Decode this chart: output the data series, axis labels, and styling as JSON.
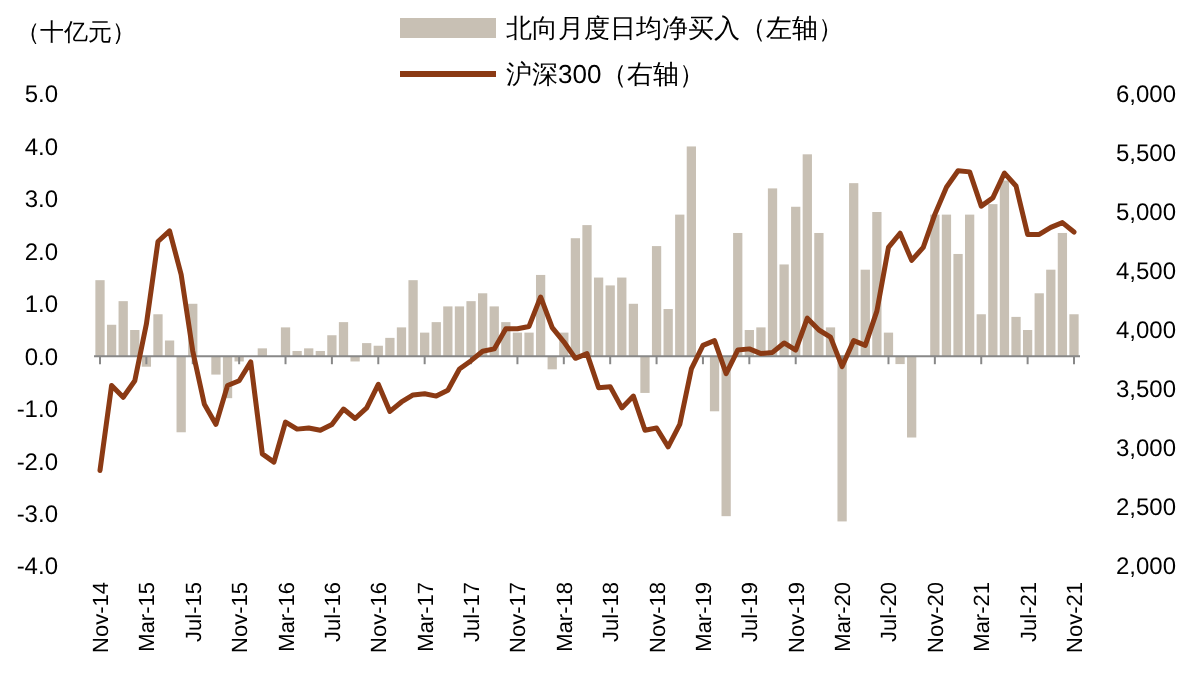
{
  "chart_data": {
    "type": "bar",
    "ylabel": "（十亿元）",
    "categories": [
      "Nov-14",
      null,
      null,
      null,
      "Mar-15",
      null,
      null,
      null,
      "Jul-15",
      null,
      null,
      null,
      "Nov-15",
      null,
      null,
      null,
      "Mar-16",
      null,
      null,
      null,
      "Jul-16",
      null,
      null,
      null,
      "Nov-16",
      null,
      null,
      null,
      "Mar-17",
      null,
      null,
      null,
      "Jul-17",
      null,
      null,
      null,
      "Nov-17",
      null,
      null,
      null,
      "Mar-18",
      null,
      null,
      null,
      "Jul-18",
      null,
      null,
      null,
      "Nov-18",
      null,
      null,
      null,
      "Mar-19",
      null,
      null,
      null,
      "Jul-19",
      null,
      null,
      null,
      "Nov-19",
      null,
      null,
      null,
      "Mar-20",
      null,
      null,
      null,
      "Jul-20",
      null,
      null,
      null,
      "Nov-20",
      null,
      null,
      null,
      "Mar-21",
      null,
      null,
      null,
      "Jul-21",
      null,
      null,
      null,
      "Nov-21"
    ],
    "series": [
      {
        "name": "北向月度日均净买入（左轴）",
        "color": "#c8c0b4",
        "values": [
          1.45,
          0.6,
          1.05,
          0.5,
          -0.2,
          0.8,
          0.3,
          -1.45,
          1.0,
          null,
          -0.35,
          -0.8,
          -0.1,
          0.0,
          0.15,
          0.0,
          0.55,
          0.1,
          0.15,
          0.1,
          0.4,
          0.65,
          -0.1,
          0.25,
          0.2,
          0.35,
          0.55,
          1.45,
          0.45,
          0.65,
          0.95,
          0.95,
          1.05,
          1.2,
          0.95,
          0.65,
          0.45,
          0.45,
          1.55,
          -0.25,
          0.45,
          2.25,
          2.5,
          1.5,
          1.35,
          1.5,
          1.0,
          -0.7,
          2.1,
          0.9,
          2.7,
          4.0,
          null,
          -1.05,
          -3.05,
          2.35,
          0.5,
          0.55,
          3.2,
          1.75,
          2.85,
          3.85,
          2.35,
          0.55,
          -3.15,
          3.3,
          1.65,
          2.75,
          0.45,
          -0.15,
          -1.55,
          0.0,
          2.7,
          2.7,
          1.95,
          2.7,
          0.8,
          2.9,
          3.35,
          0.75,
          0.5,
          1.2,
          1.65,
          2.35,
          0.8
        ]
      },
      {
        "name": "沪深300（右轴）",
        "type": "line",
        "axis": "y2",
        "color": "#8b3a14",
        "values": [
          2810,
          3530,
          3430,
          3570,
          4050,
          4750,
          4840,
          4470,
          3820,
          3370,
          3200,
          3530,
          3570,
          3730,
          2950,
          2880,
          3220,
          3160,
          3170,
          3150,
          3200,
          3330,
          3250,
          3340,
          3540,
          3310,
          3390,
          3450,
          3460,
          3440,
          3490,
          3670,
          3740,
          3820,
          3840,
          4010,
          4010,
          4030,
          4280,
          4020,
          3900,
          3760,
          3800,
          3510,
          3520,
          3340,
          3440,
          3150,
          3170,
          3010,
          3200,
          3670,
          3870,
          3910,
          3630,
          3830,
          3840,
          3800,
          3810,
          3890,
          3830,
          4100,
          4000,
          3940,
          3690,
          3910,
          3870,
          4160,
          4700,
          4820,
          4590,
          4700,
          4980,
          5210,
          5350,
          5340,
          5050,
          5120,
          5330,
          5220,
          4810,
          4810,
          4870,
          4910,
          4830
        ]
      }
    ],
    "ylim": [
      -4,
      5
    ],
    "yticks": [
      {
        "value": 5,
        "label": "5.0"
      },
      {
        "value": 4,
        "label": "4.0"
      },
      {
        "value": 3,
        "label": "3.0"
      },
      {
        "value": 2,
        "label": "2.0"
      },
      {
        "value": 1,
        "label": "1.0"
      },
      {
        "value": 0,
        "label": "0.0"
      },
      {
        "value": -1,
        "label": "-1.0"
      },
      {
        "value": -2,
        "label": "-2.0"
      },
      {
        "value": -3,
        "label": "-3.0"
      },
      {
        "value": -4,
        "label": "-4.0"
      }
    ],
    "y2lim": [
      2000,
      6000
    ],
    "y2ticks": [
      {
        "value": 6000,
        "label": "6,000"
      },
      {
        "value": 5500,
        "label": "5,500"
      },
      {
        "value": 5000,
        "label": "5,000"
      },
      {
        "value": 4500,
        "label": "4,500"
      },
      {
        "value": 4000,
        "label": "4,000"
      },
      {
        "value": 3500,
        "label": "3,500"
      },
      {
        "value": 3000,
        "label": "3,000"
      },
      {
        "value": 2500,
        "label": "2,500"
      },
      {
        "value": 2000,
        "label": "2,000"
      }
    ],
    "legend": "top",
    "line_style": "solid"
  }
}
